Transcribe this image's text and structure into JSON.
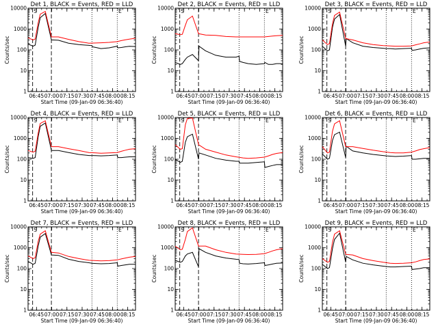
{
  "colors": {
    "events": "#000000",
    "lld": "#ff0000",
    "axes": "#000000",
    "background": "#ffffff"
  },
  "layout": {
    "grid": "3x3",
    "y_scale": "log",
    "ylim": [
      1,
      10000
    ],
    "legend": "title"
  },
  "shared": {
    "ylabel": "Counts/sec",
    "xlabel": "Start Time (09-Jan-09 06:36:40)",
    "x_ticks": [
      "06:45",
      "07:00",
      "07:15",
      "07:30",
      "07:45",
      "08:00",
      "08:15"
    ],
    "y_ticks": [
      "1",
      "10",
      "100",
      "1000",
      "10000"
    ],
    "x_range_minutes_after_start": [
      0,
      106
    ],
    "series": [
      "BLACK = Events",
      "RED = LLD"
    ],
    "markers": [
      {
        "label": "S",
        "type": "dashed",
        "t": 4.5
      },
      {
        "label": "",
        "type": "dashed",
        "t": 23
      },
      {
        "label": "",
        "type": "dotted",
        "t": 63
      },
      {
        "label": "E",
        "type": "dotted",
        "t": 88
      }
    ]
  },
  "chart_data": [
    {
      "type": "line",
      "title": "Det 1, BLACK = Events, RED = LLD",
      "y_scale": "log",
      "ylim": [
        1,
        10000
      ],
      "series": [
        {
          "name": "Events",
          "color": "#000000",
          "x": [
            0,
            5,
            7,
            10,
            12,
            17,
            23,
            30,
            40,
            50,
            60,
            63,
            63.5,
            67,
            72,
            80,
            88,
            88.5,
            92,
            96,
            100,
            106
          ],
          "y": [
            190,
            150,
            170,
            1200,
            3500,
            5600,
            300,
            290,
            210,
            180,
            165,
            160,
            140,
            130,
            115,
            125,
            150,
            125,
            130,
            140,
            148,
            145
          ]
        },
        {
          "name": "LLD",
          "color": "#ff0000",
          "x": [
            0,
            5,
            7,
            10,
            12,
            17,
            23,
            30,
            40,
            50,
            60,
            67,
            72,
            80,
            88,
            92,
            96,
            100,
            106
          ],
          "y": [
            380,
            300,
            330,
            2000,
            5200,
            7000,
            420,
            420,
            320,
            250,
            210,
            215,
            220,
            230,
            250,
            280,
            305,
            330,
            360
          ]
        }
      ]
    },
    {
      "type": "line",
      "title": "Det 2, BLACK = Events, RED = LLD",
      "y_scale": "log",
      "ylim": [
        1,
        10000
      ],
      "series": [
        {
          "name": "Events",
          "color": "#000000",
          "x": [
            0,
            5,
            7,
            10,
            12,
            17,
            23,
            23.5,
            30,
            40,
            50,
            60,
            63,
            63.5,
            67,
            72,
            80,
            88,
            88.5,
            92,
            96,
            100,
            106
          ],
          "y": [
            25,
            20,
            22,
            35,
            45,
            60,
            30,
            150,
            90,
            55,
            45,
            45,
            50,
            28,
            25,
            22,
            20,
            22,
            25,
            20,
            20,
            22,
            22
          ]
        },
        {
          "name": "LLD",
          "color": "#ff0000",
          "x": [
            0,
            5,
            7,
            10,
            12,
            17,
            23,
            30,
            40,
            50,
            60,
            67,
            72,
            80,
            88,
            92,
            96,
            100,
            106
          ],
          "y": [
            600,
            540,
            560,
            1500,
            2800,
            4200,
            600,
            520,
            500,
            440,
            420,
            420,
            420,
            420,
            420,
            440,
            460,
            480,
            500
          ]
        }
      ]
    },
    {
      "type": "line",
      "title": "Det 3, BLACK = Events, RED = LLD",
      "y_scale": "log",
      "ylim": [
        1,
        10000
      ],
      "series": [
        {
          "name": "Events",
          "color": "#000000",
          "x": [
            0,
            5,
            7,
            10,
            12,
            17,
            23,
            23.5,
            30,
            40,
            50,
            60,
            63,
            67,
            72,
            80,
            88,
            88.5,
            92,
            96,
            100,
            106
          ],
          "y": [
            150,
            90,
            100,
            1200,
            3000,
            5000,
            150,
            350,
            220,
            150,
            130,
            120,
            115,
            115,
            110,
            115,
            120,
            95,
            100,
            110,
            120,
            125
          ]
        },
        {
          "name": "LLD",
          "color": "#ff0000",
          "x": [
            0,
            5,
            7,
            10,
            12,
            17,
            23,
            30,
            40,
            50,
            60,
            67,
            72,
            80,
            88,
            92,
            96,
            100,
            106
          ],
          "y": [
            300,
            180,
            200,
            1800,
            4500,
            6500,
            350,
            300,
            220,
            180,
            160,
            155,
            150,
            150,
            155,
            175,
            195,
            220,
            240
          ]
        }
      ]
    },
    {
      "type": "line",
      "title": "Det 4, BLACK = Events, RED = LLD",
      "y_scale": "log",
      "ylim": [
        1,
        10000
      ],
      "series": [
        {
          "name": "Events",
          "color": "#000000",
          "x": [
            0,
            5,
            7,
            10,
            12,
            17,
            23,
            30,
            40,
            50,
            60,
            63,
            67,
            72,
            80,
            88,
            88.5,
            92,
            96,
            100,
            106
          ],
          "y": [
            120,
            110,
            120,
            1200,
            3800,
            5500,
            260,
            260,
            210,
            170,
            150,
            150,
            148,
            145,
            150,
            160,
            120,
            120,
            125,
            130,
            130
          ]
        },
        {
          "name": "LLD",
          "color": "#ff0000",
          "x": [
            0,
            5,
            7,
            10,
            12,
            17,
            23,
            30,
            40,
            50,
            60,
            67,
            72,
            80,
            88,
            92,
            96,
            100,
            106
          ],
          "y": [
            260,
            220,
            240,
            1800,
            5200,
            7000,
            400,
            400,
            320,
            260,
            210,
            200,
            195,
            200,
            210,
            240,
            270,
            300,
            320
          ]
        }
      ]
    },
    {
      "type": "line",
      "title": "Det 5, BLACK = Events, RED = LLD",
      "y_scale": "log",
      "ylim": [
        1,
        10000
      ],
      "series": [
        {
          "name": "Events",
          "color": "#000000",
          "x": [
            0,
            5,
            7,
            10,
            12,
            17,
            23,
            23.5,
            30,
            40,
            50,
            60,
            63,
            63.5,
            67,
            72,
            80,
            88,
            88.5,
            92,
            96,
            100,
            106
          ],
          "y": [
            100,
            70,
            80,
            650,
            1200,
            1600,
            100,
            200,
            160,
            110,
            90,
            80,
            80,
            65,
            65,
            65,
            70,
            75,
            40,
            45,
            50,
            55,
            55
          ]
        },
        {
          "name": "LLD",
          "color": "#ff0000",
          "x": [
            0,
            5,
            7,
            10,
            12,
            17,
            23,
            30,
            40,
            50,
            60,
            67,
            72,
            80,
            88,
            92,
            96,
            100,
            106
          ],
          "y": [
            500,
            300,
            320,
            4500,
            9000,
            9500,
            500,
            300,
            220,
            160,
            130,
            115,
            110,
            115,
            125,
            145,
            170,
            190,
            210
          ]
        }
      ]
    },
    {
      "type": "line",
      "title": "Det 6, BLACK = Events, RED = LLD",
      "y_scale": "log",
      "ylim": [
        1,
        10000
      ],
      "series": [
        {
          "name": "Events",
          "color": "#000000",
          "x": [
            0,
            5,
            7,
            10,
            12,
            17,
            23,
            23.5,
            30,
            40,
            50,
            60,
            63,
            67,
            72,
            80,
            88,
            88.5,
            92,
            96,
            100,
            106
          ],
          "y": [
            180,
            100,
            110,
            800,
            1500,
            2000,
            120,
            420,
            250,
            200,
            170,
            150,
            145,
            140,
            135,
            140,
            150,
            100,
            100,
            105,
            110,
            110
          ]
        },
        {
          "name": "LLD",
          "color": "#ff0000",
          "x": [
            0,
            5,
            7,
            10,
            12,
            17,
            23,
            30,
            40,
            50,
            60,
            67,
            72,
            80,
            88,
            92,
            96,
            100,
            106
          ],
          "y": [
            400,
            200,
            220,
            2200,
            5000,
            7000,
            400,
            400,
            330,
            270,
            230,
            210,
            200,
            200,
            220,
            250,
            290,
            320,
            360
          ]
        }
      ]
    },
    {
      "type": "line",
      "title": "Det 7, BLACK = Events, RED = LLD",
      "y_scale": "log",
      "ylim": [
        1,
        10000
      ],
      "series": [
        {
          "name": "Events",
          "color": "#000000",
          "x": [
            0,
            5,
            7,
            10,
            12,
            17,
            23,
            30,
            40,
            50,
            60,
            63,
            67,
            72,
            80,
            88,
            88.5,
            92,
            96,
            100,
            106
          ],
          "y": [
            220,
            160,
            180,
            1200,
            3200,
            4800,
            450,
            430,
            280,
            220,
            190,
            180,
            175,
            170,
            175,
            190,
            130,
            140,
            150,
            160,
            160
          ]
        },
        {
          "name": "LLD",
          "color": "#ff0000",
          "x": [
            0,
            5,
            7,
            10,
            12,
            17,
            23,
            30,
            40,
            50,
            60,
            67,
            72,
            80,
            88,
            92,
            96,
            100,
            106
          ],
          "y": [
            400,
            300,
            330,
            2000,
            4500,
            6500,
            600,
            560,
            380,
            300,
            250,
            240,
            235,
            240,
            260,
            290,
            320,
            350,
            380
          ]
        }
      ]
    },
    {
      "type": "line",
      "title": "Det 8, BLACK = Events, RED = LLD",
      "y_scale": "log",
      "ylim": [
        1,
        10000
      ],
      "series": [
        {
          "name": "Events",
          "color": "#000000",
          "x": [
            0,
            5,
            7,
            10,
            12,
            17,
            23,
            23.5,
            30,
            40,
            50,
            60,
            63,
            63.5,
            67,
            72,
            80,
            88,
            88.5,
            92,
            96,
            100,
            106
          ],
          "y": [
            250,
            200,
            220,
            400,
            500,
            600,
            120,
            900,
            600,
            400,
            320,
            280,
            270,
            180,
            170,
            165,
            175,
            190,
            140,
            150,
            165,
            180,
            185
          ]
        },
        {
          "name": "LLD",
          "color": "#ff0000",
          "x": [
            0,
            5,
            7,
            10,
            12,
            17,
            23,
            30,
            40,
            50,
            60,
            67,
            72,
            80,
            88,
            92,
            96,
            100,
            106
          ],
          "y": [
            1200,
            800,
            850,
            2500,
            6000,
            9000,
            1200,
            1200,
            800,
            600,
            500,
            480,
            470,
            480,
            520,
            600,
            700,
            800,
            900
          ]
        }
      ]
    },
    {
      "type": "line",
      "title": "Det 9, BLACK = Events, RED = LLD",
      "y_scale": "log",
      "ylim": [
        1,
        10000
      ],
      "series": [
        {
          "name": "Events",
          "color": "#000000",
          "x": [
            0,
            5,
            7,
            10,
            12,
            17,
            23,
            23.5,
            30,
            40,
            50,
            60,
            63,
            67,
            72,
            80,
            88,
            88.5,
            92,
            96,
            100,
            106
          ],
          "y": [
            160,
            100,
            110,
            900,
            2500,
            5000,
            200,
            380,
            260,
            180,
            150,
            130,
            125,
            120,
            120,
            125,
            130,
            90,
            95,
            100,
            110,
            110
          ]
        },
        {
          "name": "LLD",
          "color": "#ff0000",
          "x": [
            0,
            5,
            7,
            10,
            12,
            17,
            23,
            30,
            40,
            50,
            60,
            67,
            72,
            80,
            88,
            92,
            96,
            100,
            106
          ],
          "y": [
            300,
            200,
            220,
            1800,
            4500,
            6500,
            480,
            450,
            300,
            240,
            200,
            180,
            175,
            180,
            190,
            210,
            240,
            270,
            290
          ]
        }
      ]
    }
  ]
}
